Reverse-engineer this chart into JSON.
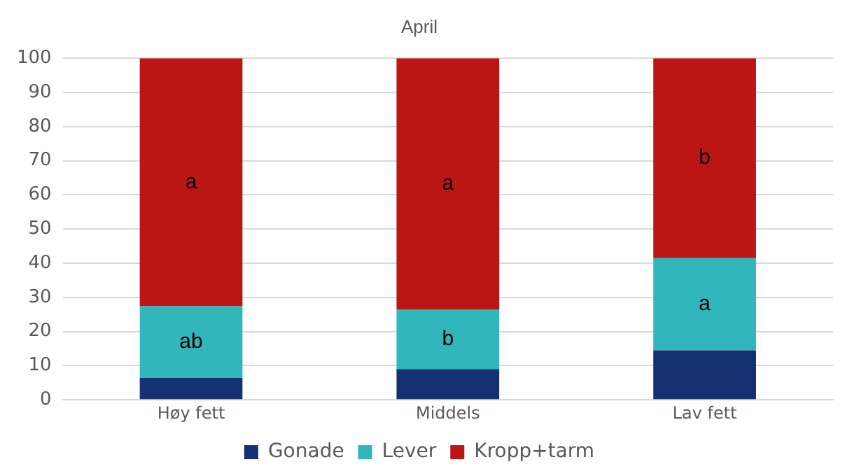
{
  "chart_data": {
    "type": "bar",
    "title": "April",
    "stacked": true,
    "categories": [
      "Høy fett",
      "Middels",
      "Lav fett"
    ],
    "series": [
      {
        "name": "Gonade",
        "color": "#143172",
        "values": [
          6.4,
          9,
          14.5
        ]
      },
      {
        "name": "Lever",
        "color": "#31b6bb",
        "values": [
          21,
          17.5,
          27
        ],
        "value_labels": [
          "ab",
          "b",
          "a"
        ]
      },
      {
        "name": "Kropp+tarm",
        "color": "#bb1514",
        "values": [
          72.6,
          73.5,
          58.5
        ],
        "value_labels": [
          "a",
          "a",
          "b"
        ]
      }
    ],
    "ylim": [
      0,
      100
    ],
    "yticks": [
      0,
      10,
      20,
      30,
      40,
      50,
      60,
      70,
      80,
      90,
      100
    ],
    "grid": "y",
    "legend": "bottom"
  }
}
